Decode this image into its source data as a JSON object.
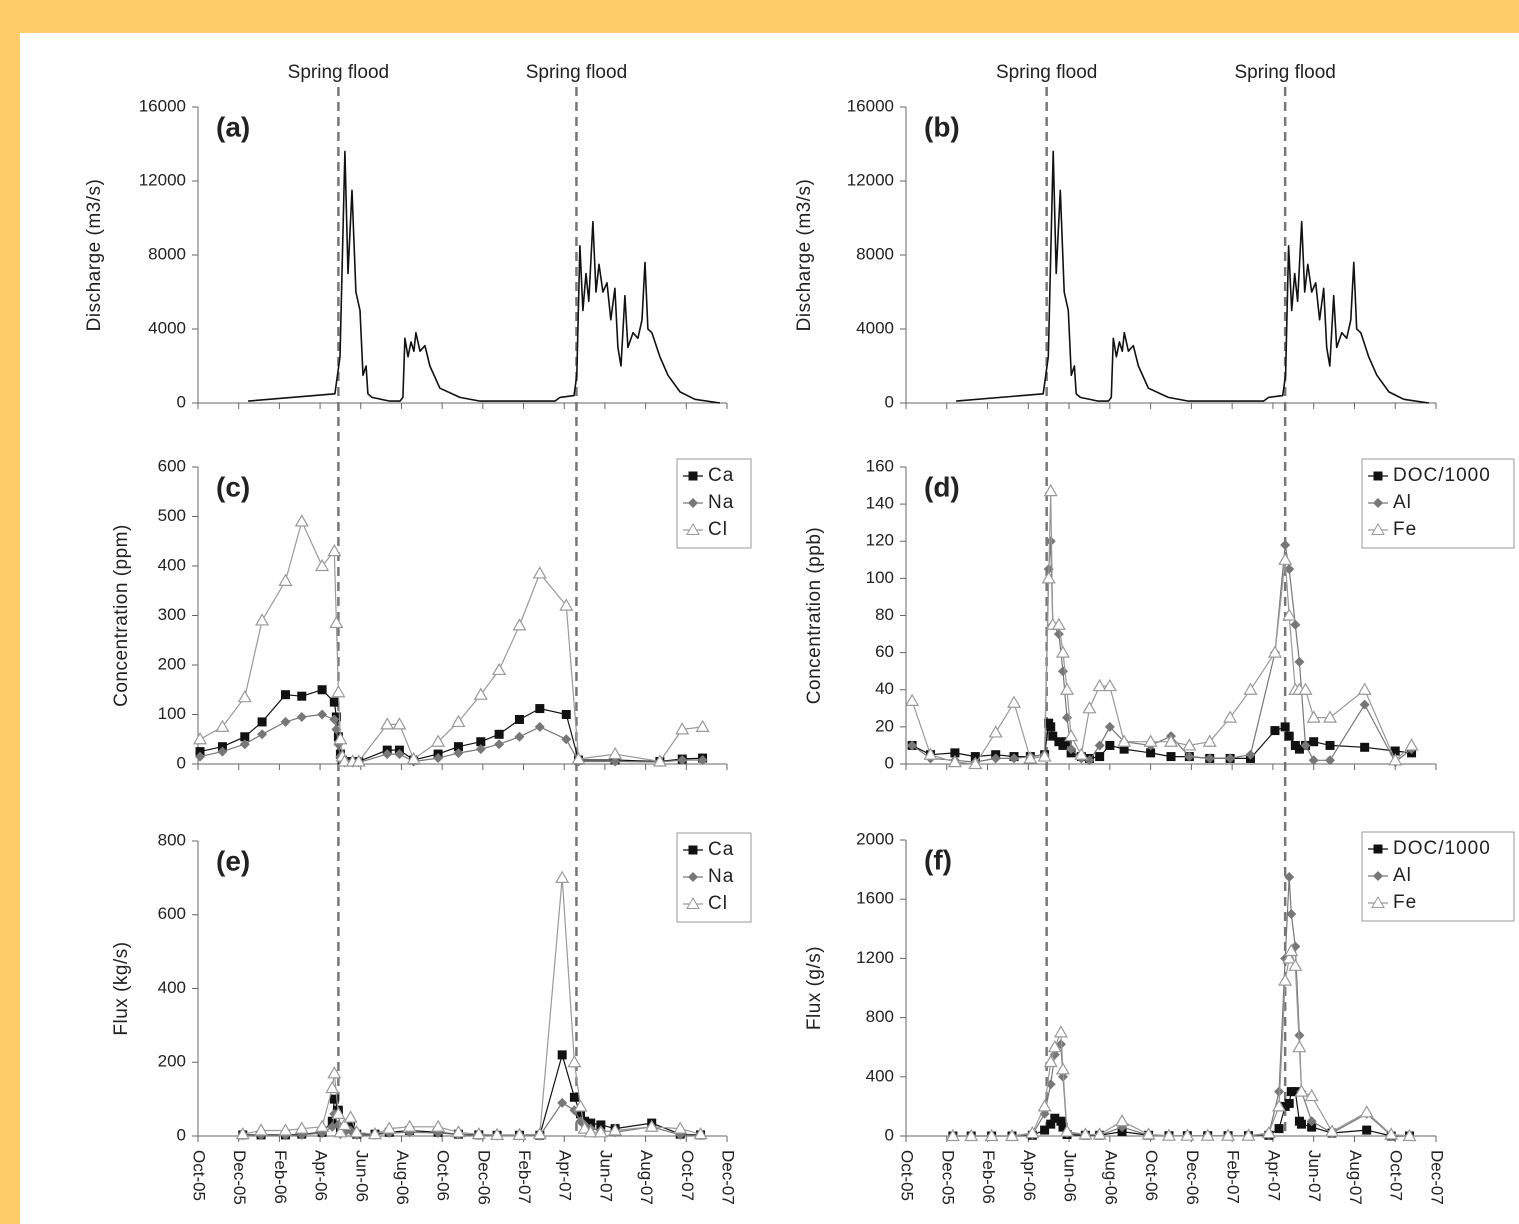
{
  "chart_data": [
    {
      "type": "line",
      "panel_label": "(a)",
      "y_label": "Discharge (m3/s)",
      "annotations": [
        {
          "text": "Spring flood",
          "x": 6.9
        },
        {
          "text": "Spring flood",
          "x": 18.6
        }
      ],
      "flood_lines": [
        6.9,
        18.6
      ],
      "xlim": [
        0,
        26
      ],
      "xticks": [
        0,
        2,
        4,
        6,
        8,
        10,
        12,
        14,
        16,
        18,
        20,
        22,
        24,
        26
      ],
      "ylim": [
        0,
        16000
      ],
      "yticks": [
        0,
        4000,
        8000,
        12000,
        16000
      ],
      "x": [
        2.46,
        6.73,
        6.98,
        7.22,
        7.37,
        7.57,
        7.76,
        7.96,
        8.11,
        8.26,
        8.35,
        8.55,
        9.43,
        9.93,
        10.07,
        10.17,
        10.32,
        10.47,
        10.61,
        10.71,
        10.91,
        11.15,
        11.4,
        11.89,
        12.87,
        13.86,
        17.54,
        17.79,
        18.48,
        18.62,
        18.77,
        18.92,
        19.07,
        19.21,
        19.41,
        19.56,
        19.71,
        19.9,
        20.1,
        20.29,
        20.49,
        20.64,
        20.79,
        20.98,
        21.13,
        21.38,
        21.62,
        21.82,
        21.97,
        22.11,
        22.31,
        22.7,
        23.1,
        23.69,
        24.42,
        25.65
      ],
      "series": [
        {
          "color": "#111111",
          "values": [
            100,
            500,
            2500,
            13600,
            7000,
            11500,
            6000,
            5000,
            1500,
            2000,
            500,
            300,
            100,
            100,
            300,
            3500,
            2500,
            3300,
            2800,
            3800,
            2800,
            3100,
            2000,
            800,
            300,
            100,
            100,
            300,
            400,
            1500,
            8500,
            5000,
            7000,
            5500,
            9800,
            6000,
            7500,
            6000,
            6500,
            4500,
            6200,
            3000,
            2000,
            5800,
            3000,
            3800,
            3500,
            4500,
            7600,
            4000,
            3800,
            2500,
            1500,
            600,
            200,
            0
          ]
        }
      ]
    },
    {
      "type": "line",
      "panel_label": "(b)",
      "y_label": "Discharge (m3/s)",
      "annotations": [
        {
          "text": "Spring flood",
          "x": 6.9
        },
        {
          "text": "Spring flood",
          "x": 18.6
        }
      ],
      "flood_lines": [
        6.9,
        18.6
      ],
      "xlim": [
        0,
        26
      ],
      "xticks": [
        0,
        2,
        4,
        6,
        8,
        10,
        12,
        14,
        16,
        18,
        20,
        22,
        24,
        26
      ],
      "ylim": [
        0,
        16000
      ],
      "yticks": [
        0,
        4000,
        8000,
        12000,
        16000
      ],
      "x": [
        2.46,
        6.73,
        6.98,
        7.22,
        7.37,
        7.57,
        7.76,
        7.96,
        8.11,
        8.26,
        8.35,
        8.55,
        9.43,
        9.93,
        10.07,
        10.17,
        10.32,
        10.47,
        10.61,
        10.71,
        10.91,
        11.15,
        11.4,
        11.89,
        12.87,
        13.86,
        17.54,
        17.79,
        18.48,
        18.62,
        18.77,
        18.92,
        19.07,
        19.21,
        19.41,
        19.56,
        19.71,
        19.9,
        20.1,
        20.29,
        20.49,
        20.64,
        20.79,
        20.98,
        21.13,
        21.38,
        21.62,
        21.82,
        21.97,
        22.11,
        22.31,
        22.7,
        23.1,
        23.69,
        24.42,
        25.65
      ],
      "series": [
        {
          "color": "#111111",
          "values": [
            100,
            500,
            2500,
            13600,
            7000,
            11500,
            6000,
            5000,
            1500,
            2000,
            500,
            300,
            100,
            100,
            300,
            3500,
            2500,
            3300,
            2800,
            3800,
            2800,
            3100,
            2000,
            800,
            300,
            100,
            100,
            300,
            400,
            1500,
            8500,
            5000,
            7000,
            5500,
            9800,
            6000,
            7500,
            6000,
            6500,
            4500,
            6200,
            3000,
            2000,
            5800,
            3000,
            3800,
            3500,
            4500,
            7600,
            4000,
            3800,
            2500,
            1500,
            600,
            200,
            0
          ]
        }
      ]
    },
    {
      "type": "line",
      "panel_label": "(c)",
      "y_label": "Concentration (ppm)",
      "legend": "upper right",
      "xlim": [
        0,
        26
      ],
      "xticks": [
        0,
        2,
        4,
        6,
        8,
        10,
        12,
        14,
        16,
        18,
        20,
        22,
        24,
        26
      ],
      "ylim": [
        0,
        600
      ],
      "yticks": [
        0,
        100,
        200,
        300,
        400,
        500,
        600
      ],
      "x": [
        0.1,
        1.2,
        2.3,
        3.15,
        4.3,
        5.1,
        6.1,
        6.7,
        6.8,
        6.9,
        7.0,
        7.1,
        7.2,
        7.6,
        7.9,
        9.3,
        9.9,
        10.6,
        11.8,
        12.8,
        13.9,
        14.8,
        15.8,
        16.8,
        18.1,
        18.7,
        20.5,
        22.7,
        23.8,
        24.8
      ],
      "series": [
        {
          "name": "Ca",
          "color": "#111111",
          "marker": "square",
          "values": [
            25,
            35,
            55,
            85,
            140,
            137,
            150,
            125,
            95,
            55,
            20,
            8,
            5,
            5,
            5,
            28,
            28,
            8,
            20,
            35,
            45,
            60,
            90,
            112,
            100,
            8,
            8,
            5,
            10,
            12
          ]
        },
        {
          "name": "Na",
          "color": "#777777",
          "marker": "diamond",
          "values": [
            15,
            25,
            40,
            60,
            85,
            95,
            100,
            90,
            70,
            40,
            15,
            5,
            3,
            3,
            3,
            20,
            20,
            5,
            12,
            22,
            30,
            40,
            55,
            75,
            50,
            5,
            5,
            4,
            8,
            8
          ]
        },
        {
          "name": "Cl",
          "color": "#999999",
          "marker": "triangle",
          "values": [
            50,
            75,
            135,
            290,
            370,
            490,
            400,
            430,
            285,
            145,
            50,
            15,
            5,
            5,
            5,
            80,
            80,
            10,
            45,
            85,
            140,
            190,
            280,
            385,
            320,
            10,
            20,
            5,
            70,
            75
          ]
        }
      ]
    },
    {
      "type": "line",
      "panel_label": "(d)",
      "y_label": "Concentration (ppb)",
      "legend": "upper right",
      "xlim": [
        0,
        26
      ],
      "xticks": [
        0,
        2,
        4,
        6,
        8,
        10,
        12,
        14,
        16,
        18,
        20,
        22,
        24,
        26
      ],
      "ylim": [
        0,
        160
      ],
      "yticks": [
        0,
        20,
        40,
        60,
        80,
        100,
        120,
        140,
        160
      ],
      "x": [
        0.3,
        1.2,
        2.4,
        3.4,
        4.4,
        5.3,
        6.1,
        6.8,
        7.0,
        7.1,
        7.2,
        7.5,
        7.7,
        7.9,
        8.1,
        8.6,
        9.0,
        9.5,
        10.0,
        10.7,
        12.0,
        13.0,
        13.9,
        14.9,
        15.9,
        16.9,
        18.1,
        18.6,
        18.8,
        19.1,
        19.3,
        19.6,
        20.0,
        20.8,
        22.5,
        24.0,
        24.8
      ],
      "series": [
        {
          "name": "DOC/1000",
          "color": "#111111",
          "marker": "square",
          "values": [
            10,
            5,
            6,
            4,
            5,
            4,
            4,
            5,
            22,
            20,
            15,
            12,
            10,
            12,
            6,
            4,
            3,
            4,
            10,
            8,
            6,
            4,
            4,
            3,
            3,
            3,
            18,
            20,
            15,
            10,
            8,
            10,
            12,
            10,
            9,
            7,
            6
          ]
        },
        {
          "name": "Al",
          "color": "#777777",
          "marker": "diamond",
          "values": [
            10,
            3,
            2,
            1,
            3,
            3,
            4,
            5,
            105,
            120,
            75,
            70,
            50,
            25,
            8,
            3,
            2,
            10,
            20,
            12,
            10,
            15,
            4,
            3,
            3,
            5,
            60,
            118,
            105,
            75,
            55,
            10,
            2,
            2,
            32,
            1,
            8
          ]
        },
        {
          "name": "Fe",
          "color": "#999999",
          "marker": "triangle",
          "values": [
            34,
            5,
            1,
            0,
            17,
            33,
            3,
            4,
            100,
            147,
            75,
            75,
            60,
            40,
            15,
            5,
            30,
            42,
            42,
            12,
            12,
            12,
            10,
            12,
            25,
            40,
            60,
            110,
            80,
            40,
            40,
            40,
            25,
            25,
            40,
            2,
            10
          ]
        }
      ]
    },
    {
      "type": "line",
      "panel_label": "(e)",
      "y_label": "Flux (kg/s)",
      "legend": "upper right",
      "xlim": [
        0,
        26
      ],
      "xticks": [
        {
          "value": 0,
          "label": "Oct-05"
        },
        {
          "value": 2,
          "label": "Dec-05"
        },
        {
          "value": 4,
          "label": "Feb-06"
        },
        {
          "value": 6,
          "label": "Apr-06"
        },
        {
          "value": 8,
          "label": "Jun-06"
        },
        {
          "value": 10,
          "label": "Aug-06"
        },
        {
          "value": 12,
          "label": "Oct-06"
        },
        {
          "value": 14,
          "label": "Dec-06"
        },
        {
          "value": 16,
          "label": "Feb-07"
        },
        {
          "value": 18,
          "label": "Apr-07"
        },
        {
          "value": 20,
          "label": "Jun-07"
        },
        {
          "value": 22,
          "label": "Aug-07"
        },
        {
          "value": 24,
          "label": "Oct-07"
        },
        {
          "value": 26,
          "label": "Dec-07"
        }
      ],
      "ylim": [
        0,
        800
      ],
      "yticks": [
        0,
        200,
        400,
        600,
        800
      ],
      "x": [
        2.2,
        3.1,
        4.3,
        5.1,
        6.1,
        6.6,
        6.7,
        6.9,
        7.0,
        7.2,
        7.5,
        7.8,
        8.7,
        9.4,
        10.4,
        11.8,
        12.8,
        13.8,
        14.7,
        15.8,
        16.8,
        17.9,
        18.5,
        18.8,
        19.0,
        19.3,
        19.8,
        20.5,
        22.3,
        23.7,
        24.7
      ],
      "series": [
        {
          "name": "Ca",
          "color": "#111111",
          "marker": "square",
          "values": [
            3,
            3,
            3,
            5,
            10,
            40,
            100,
            70,
            10,
            20,
            30,
            5,
            5,
            10,
            15,
            10,
            5,
            3,
            2,
            2,
            2,
            220,
            105,
            60,
            40,
            35,
            30,
            20,
            35,
            5,
            3
          ]
        },
        {
          "name": "Na",
          "color": "#777777",
          "marker": "diamond",
          "values": [
            2,
            2,
            2,
            3,
            8,
            25,
            60,
            30,
            5,
            10,
            15,
            3,
            3,
            8,
            10,
            8,
            4,
            2,
            1,
            1,
            1,
            90,
            70,
            40,
            30,
            20,
            15,
            10,
            25,
            3,
            2
          ]
        },
        {
          "name": "Cl",
          "color": "#999999",
          "marker": "triangle",
          "values": [
            5,
            15,
            15,
            20,
            25,
            130,
            170,
            60,
            10,
            30,
            50,
            10,
            5,
            20,
            25,
            25,
            10,
            5,
            3,
            3,
            5,
            700,
            200,
            80,
            20,
            10,
            10,
            15,
            25,
            20,
            5
          ]
        }
      ]
    },
    {
      "type": "line",
      "panel_label": "(f)",
      "y_label": "Flux (g/s)",
      "legend": "upper right",
      "xlim": [
        0,
        26
      ],
      "xticks": [
        {
          "value": 0,
          "label": "Oct-05"
        },
        {
          "value": 2,
          "label": "Dec-05"
        },
        {
          "value": 4,
          "label": "Feb-06"
        },
        {
          "value": 6,
          "label": "Apr-06"
        },
        {
          "value": 8,
          "label": "Jun-06"
        },
        {
          "value": 10,
          "label": "Aug-06"
        },
        {
          "value": 12,
          "label": "Oct-06"
        },
        {
          "value": 14,
          "label": "Dec-06"
        },
        {
          "value": 16,
          "label": "Feb-07"
        },
        {
          "value": 18,
          "label": "Apr-07"
        },
        {
          "value": 20,
          "label": "Jun-07"
        },
        {
          "value": 22,
          "label": "Aug-07"
        },
        {
          "value": 24,
          "label": "Oct-07"
        },
        {
          "value": 26,
          "label": "Dec-07"
        }
      ],
      "ylim": [
        0,
        2000
      ],
      "yticks": [
        0,
        400,
        800,
        1200,
        1600,
        2000
      ],
      "x": [
        2.3,
        3.2,
        4.2,
        5.2,
        6.2,
        6.8,
        7.1,
        7.3,
        7.6,
        7.7,
        7.9,
        8.8,
        9.5,
        10.6,
        11.9,
        12.9,
        13.8,
        14.8,
        15.8,
        16.8,
        17.8,
        18.3,
        18.6,
        18.8,
        18.9,
        19.1,
        19.3,
        19.4,
        19.9,
        20.9,
        22.6,
        23.8,
        24.7
      ],
      "series": [
        {
          "name": "DOC/1000",
          "color": "#111111",
          "marker": "square",
          "values": [
            0,
            0,
            0,
            0,
            5,
            40,
            80,
            120,
            100,
            60,
            10,
            5,
            5,
            30,
            5,
            2,
            2,
            2,
            2,
            2,
            5,
            50,
            200,
            220,
            300,
            300,
            100,
            80,
            60,
            20,
            40,
            0,
            0
          ]
        },
        {
          "name": "Al",
          "color": "#777777",
          "marker": "diamond",
          "values": [
            0,
            0,
            0,
            0,
            10,
            150,
            350,
            550,
            620,
            400,
            20,
            10,
            5,
            60,
            5,
            2,
            2,
            2,
            2,
            2,
            10,
            300,
            1200,
            1750,
            1500,
            1280,
            680,
            300,
            100,
            20,
            150,
            5,
            0
          ]
        },
        {
          "name": "Fe",
          "color": "#999999",
          "marker": "triangle",
          "values": [
            0,
            0,
            0,
            0,
            20,
            200,
            500,
            600,
            700,
            450,
            30,
            10,
            10,
            100,
            10,
            2,
            2,
            2,
            2,
            2,
            20,
            200,
            1050,
            1200,
            1250,
            1150,
            600,
            300,
            270,
            30,
            160,
            10,
            0
          ]
        }
      ]
    }
  ]
}
